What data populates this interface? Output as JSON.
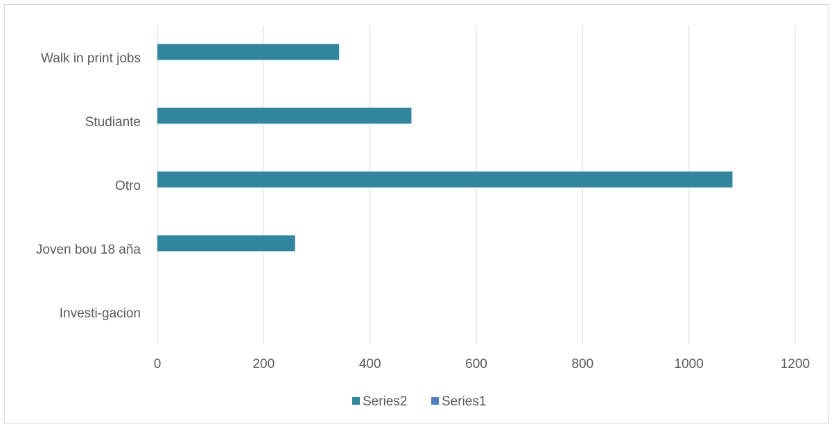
{
  "chart_data": {
    "type": "bar",
    "orientation": "horizontal",
    "categories": [
      "Walk in print jobs",
      "Studiante",
      "Otro",
      "Joven bou 18 aña",
      "Investi-gacion"
    ],
    "series": [
      {
        "name": "Series2",
        "values": [
          342,
          478,
          1082,
          259,
          0
        ],
        "color": "#31859c"
      },
      {
        "name": "Series1",
        "values": [
          0,
          0,
          0,
          0,
          0
        ],
        "color": "#4f81bd"
      }
    ],
    "xlim": [
      0,
      1200
    ],
    "xticks": [
      "0",
      "200",
      "400",
      "600",
      "800",
      "1000",
      "1200"
    ],
    "grid": "vertical",
    "legend": "bottom"
  }
}
